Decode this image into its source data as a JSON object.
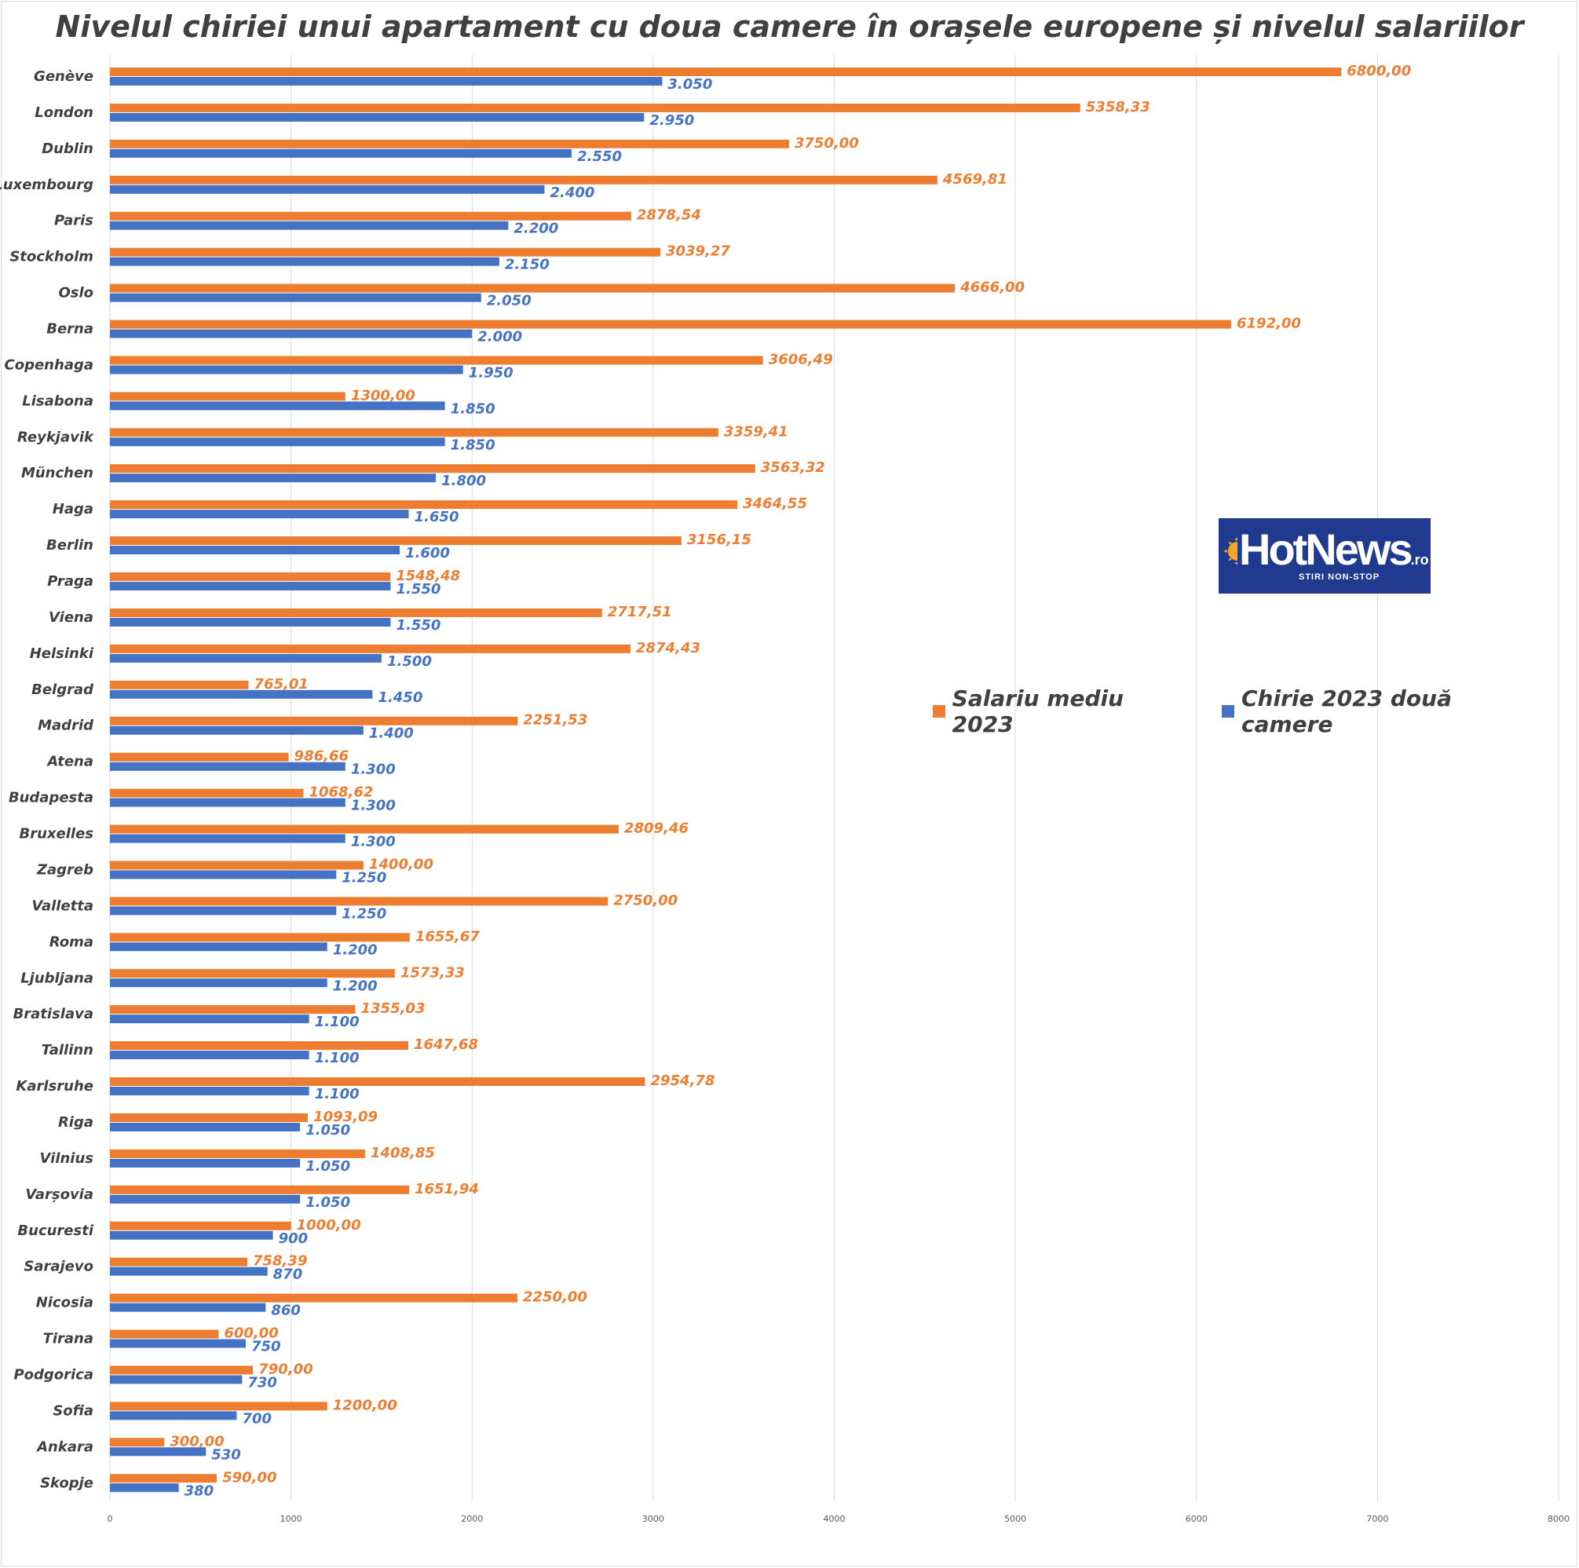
{
  "chart_data": {
    "type": "bar",
    "orientation": "horizontal",
    "title": "Nivelul chiriei unui apartament cu doua camere în orașele europene și nivelul salariilor",
    "categories": [
      "Genève",
      "London",
      "Dublin",
      "Luxembourg",
      "Paris",
      "Stockholm",
      "Oslo",
      "Berna",
      "Copenhaga",
      "Lisabona",
      "Reykjavik",
      "München",
      "Haga",
      "Berlin",
      "Praga",
      "Viena",
      "Helsinki",
      "Belgrad",
      "Madrid",
      "Atena",
      "Budapesta",
      "Bruxelles",
      "Zagreb",
      "Valletta",
      "Roma",
      "Ljubljana",
      "Bratislava",
      "Tallinn",
      "Karlsruhe",
      "Riga",
      "Vilnius",
      "Varșovia",
      "Bucuresti",
      "Sarajevo",
      "Nicosia",
      "Tirana",
      "Podgorica",
      "Sofia",
      "Ankara",
      "Skopje"
    ],
    "series": [
      {
        "name": "Salariu mediu 2023",
        "color": "#ed7d31",
        "values": [
          6800,
          5358.33,
          3750,
          4569.81,
          2878.54,
          3039.27,
          4666,
          6192,
          3606.49,
          1300,
          3359.41,
          3563.32,
          3464.55,
          3156.15,
          1548.48,
          2717.51,
          2874.43,
          765.01,
          2251.53,
          986.66,
          1068.62,
          2809.46,
          1400,
          2750,
          1655.67,
          1573.33,
          1355.03,
          1647.68,
          2954.78,
          1093.09,
          1408.85,
          1651.94,
          1000,
          758.39,
          2250,
          600,
          790,
          1200,
          300,
          590
        ],
        "labels": [
          "6800,00",
          "5358,33",
          "3750,00",
          "4569,81",
          "2878,54",
          "3039,27",
          "4666,00",
          "6192,00",
          "3606,49",
          "1300,00",
          "3359,41",
          "3563,32",
          "3464,55",
          "3156,15",
          "1548,48",
          "2717,51",
          "2874,43",
          "765,01",
          "2251,53",
          "986,66",
          "1068,62",
          "2809,46",
          "1400,00",
          "2750,00",
          "1655,67",
          "1573,33",
          "1355,03",
          "1647,68",
          "2954,78",
          "1093,09",
          "1408,85",
          "1651,94",
          "1000,00",
          "758,39",
          "2250,00",
          "600,00",
          "790,00",
          "1200,00",
          "300,00",
          "590,00"
        ]
      },
      {
        "name": "Chirie 2023 două camere",
        "color": "#4472c4",
        "values": [
          3050,
          2950,
          2550,
          2400,
          2200,
          2150,
          2050,
          2000,
          1950,
          1850,
          1850,
          1800,
          1650,
          1600,
          1550,
          1550,
          1500,
          1450,
          1400,
          1300,
          1300,
          1300,
          1250,
          1250,
          1200,
          1200,
          1100,
          1100,
          1100,
          1050,
          1050,
          1050,
          900,
          870,
          860,
          750,
          730,
          700,
          530,
          380
        ],
        "labels": [
          "3.050",
          "2.950",
          "2.550",
          "2.400",
          "2.200",
          "2.150",
          "2.050",
          "2.000",
          "1.950",
          "1.850",
          "1.850",
          "1.800",
          "1.650",
          "1.600",
          "1.550",
          "1.550",
          "1.500",
          "1.450",
          "1.400",
          "1.300",
          "1.300",
          "1.300",
          "1.250",
          "1.250",
          "1.200",
          "1.200",
          "1.100",
          "1.100",
          "1.100",
          "1.050",
          "1.050",
          "1.050",
          "900",
          "870",
          "860",
          "750",
          "730",
          "700",
          "530",
          "380"
        ]
      }
    ],
    "xlim": [
      0,
      8000
    ],
    "xticks": [
      0,
      1000,
      2000,
      3000,
      4000,
      5000,
      6000,
      7000,
      8000
    ],
    "grid": "vertical",
    "legend_position": "right-middle"
  },
  "logo": {
    "name": "HotNews",
    "suffix": ".ro",
    "tagline": "STIRI NON-STOP"
  }
}
